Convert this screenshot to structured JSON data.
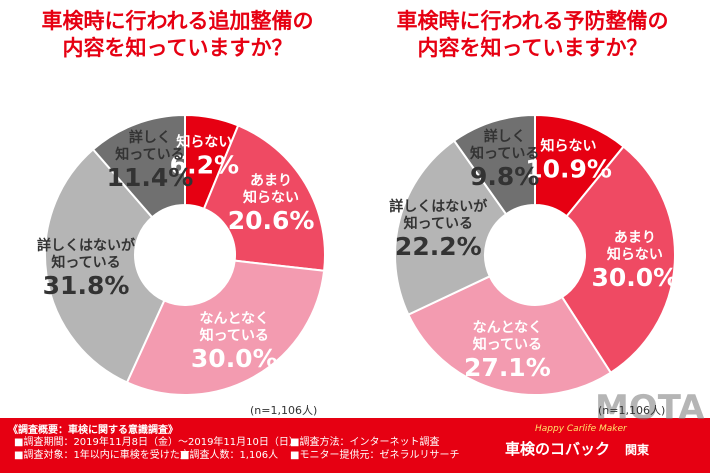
{
  "chart_data": [
    {
      "type": "donut",
      "title": [
        "車検時に行われる追加整備の",
        "内容を知っていますか？"
      ],
      "categories": [
        "知らない",
        "あまり\n知らない",
        "なんとなく\n知っている",
        "詳しくはないが\n知っている",
        "詳しく\n知っている"
      ],
      "values": [
        6.2,
        20.6,
        30.0,
        31.8,
        11.4
      ],
      "value_labels": [
        "6.2%",
        "20.6%",
        "30.0%",
        "31.8%",
        "11.4%"
      ],
      "colors": [
        "#e60012",
        "#ef4a63",
        "#f39bb0",
        "#b5b5b5",
        "#707070"
      ],
      "note": "(n=1,106人)"
    },
    {
      "type": "donut",
      "title": [
        "車検時に行われる予防整備の",
        "内容を知っていますか？"
      ],
      "categories": [
        "知らない",
        "あまり\n知らない",
        "なんとなく\n知っている",
        "詳しくはないが\n知っている",
        "詳しく\n知っている"
      ],
      "values": [
        10.9,
        30.0,
        27.1,
        22.2,
        9.8
      ],
      "value_labels": [
        "10.9%",
        "30.0%",
        "27.1%",
        "22.2%",
        "9.8%"
      ],
      "colors": [
        "#e60012",
        "#ef4a63",
        "#f39bb0",
        "#b5b5b5",
        "#707070"
      ],
      "note": "(n=1,106人)"
    }
  ],
  "footer": {
    "heading": "《調査概要：車検に関する意識調査》",
    "items": [
      "■調査期間：2019年11月8日（金）～2019年11月10日（日）",
      "■調査方法：インターネット調査",
      "■調査対象：1年以内に車検を受けた方",
      "■調査人数：1,106人",
      "■モニター提供元：ゼネラルリサーチ"
    ],
    "logo_tagline": "Happy Carlife Maker",
    "logo_name": "車検のコバック",
    "logo_region": "関東",
    "watermark": "MOTA"
  }
}
